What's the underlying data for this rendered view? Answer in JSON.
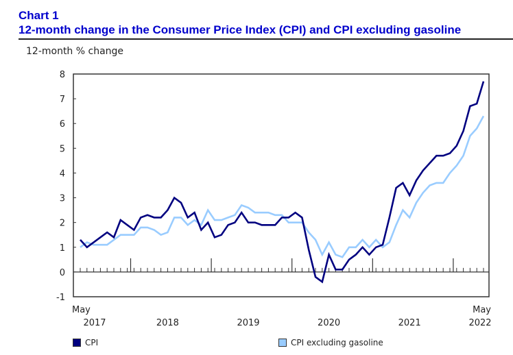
{
  "header": {
    "chart_number": "Chart 1",
    "title": "12-month change in the Consumer Price Index (CPI) and CPI excluding gasoline",
    "unit_label": "12-month % change"
  },
  "legend": [
    {
      "name": "CPI",
      "color": "#000080"
    },
    {
      "name": "CPI excluding gasoline",
      "color": "#99ccff"
    }
  ],
  "chart_data": {
    "type": "line",
    "title": "12-month change in the Consumer Price Index (CPI) and CPI excluding gasoline",
    "ylabel": "12-month % change",
    "xlabel": "",
    "ylim": [
      -1,
      8
    ],
    "yticks": [
      "-1",
      "0",
      "1",
      "2",
      "3",
      "4",
      "5",
      "6",
      "7",
      "8"
    ],
    "x_start": "May 2017",
    "x_end": "May 2022",
    "x_labels": [
      {
        "top": "May",
        "bottom": "2017",
        "month_index": 0,
        "align": "start"
      },
      {
        "top": "",
        "bottom": "2018",
        "month_index": 13
      },
      {
        "top": "",
        "bottom": "2019",
        "month_index": 25
      },
      {
        "top": "",
        "bottom": "2020",
        "month_index": 37
      },
      {
        "top": "",
        "bottom": "2021",
        "month_index": 49
      },
      {
        "top": "May",
        "bottom": "2022",
        "month_index": 60,
        "align": "end"
      }
    ],
    "major_tick_indices": [
      7.5,
      19.5,
      31.5,
      43.5,
      55.5
    ],
    "grid": false,
    "legend_position": "bottom",
    "series": [
      {
        "name": "CPI",
        "color": "#000080",
        "values": [
          1.3,
          1.0,
          1.2,
          1.4,
          1.6,
          1.4,
          2.1,
          1.9,
          1.7,
          2.2,
          2.3,
          2.2,
          2.2,
          2.5,
          3.0,
          2.8,
          2.2,
          2.4,
          1.7,
          2.0,
          1.4,
          1.5,
          1.9,
          2.0,
          2.4,
          2.0,
          2.0,
          1.9,
          1.9,
          1.9,
          2.2,
          2.2,
          2.4,
          2.2,
          0.9,
          -0.2,
          -0.4,
          0.7,
          0.1,
          0.1,
          0.5,
          0.7,
          1.0,
          0.7,
          1.0,
          1.1,
          2.2,
          3.4,
          3.6,
          3.1,
          3.7,
          4.1,
          4.4,
          4.7,
          4.7,
          4.8,
          5.1,
          5.7,
          6.7,
          6.8,
          7.7
        ]
      },
      {
        "name": "CPI excluding gasoline",
        "color": "#99ccff",
        "values": [
          1.0,
          1.2,
          1.1,
          1.1,
          1.1,
          1.3,
          1.5,
          1.5,
          1.5,
          1.8,
          1.8,
          1.7,
          1.5,
          1.6,
          2.2,
          2.2,
          1.9,
          2.1,
          1.9,
          2.5,
          2.1,
          2.1,
          2.2,
          2.3,
          2.7,
          2.6,
          2.4,
          2.4,
          2.4,
          2.3,
          2.3,
          2.0,
          2.0,
          2.0,
          1.6,
          1.3,
          0.7,
          1.2,
          0.7,
          0.6,
          1.0,
          1.0,
          1.3,
          1.0,
          1.3,
          1.0,
          1.2,
          1.9,
          2.5,
          2.2,
          2.8,
          3.2,
          3.5,
          3.6,
          3.6,
          4.0,
          4.3,
          4.7,
          5.5,
          5.8,
          6.3
        ]
      }
    ]
  }
}
